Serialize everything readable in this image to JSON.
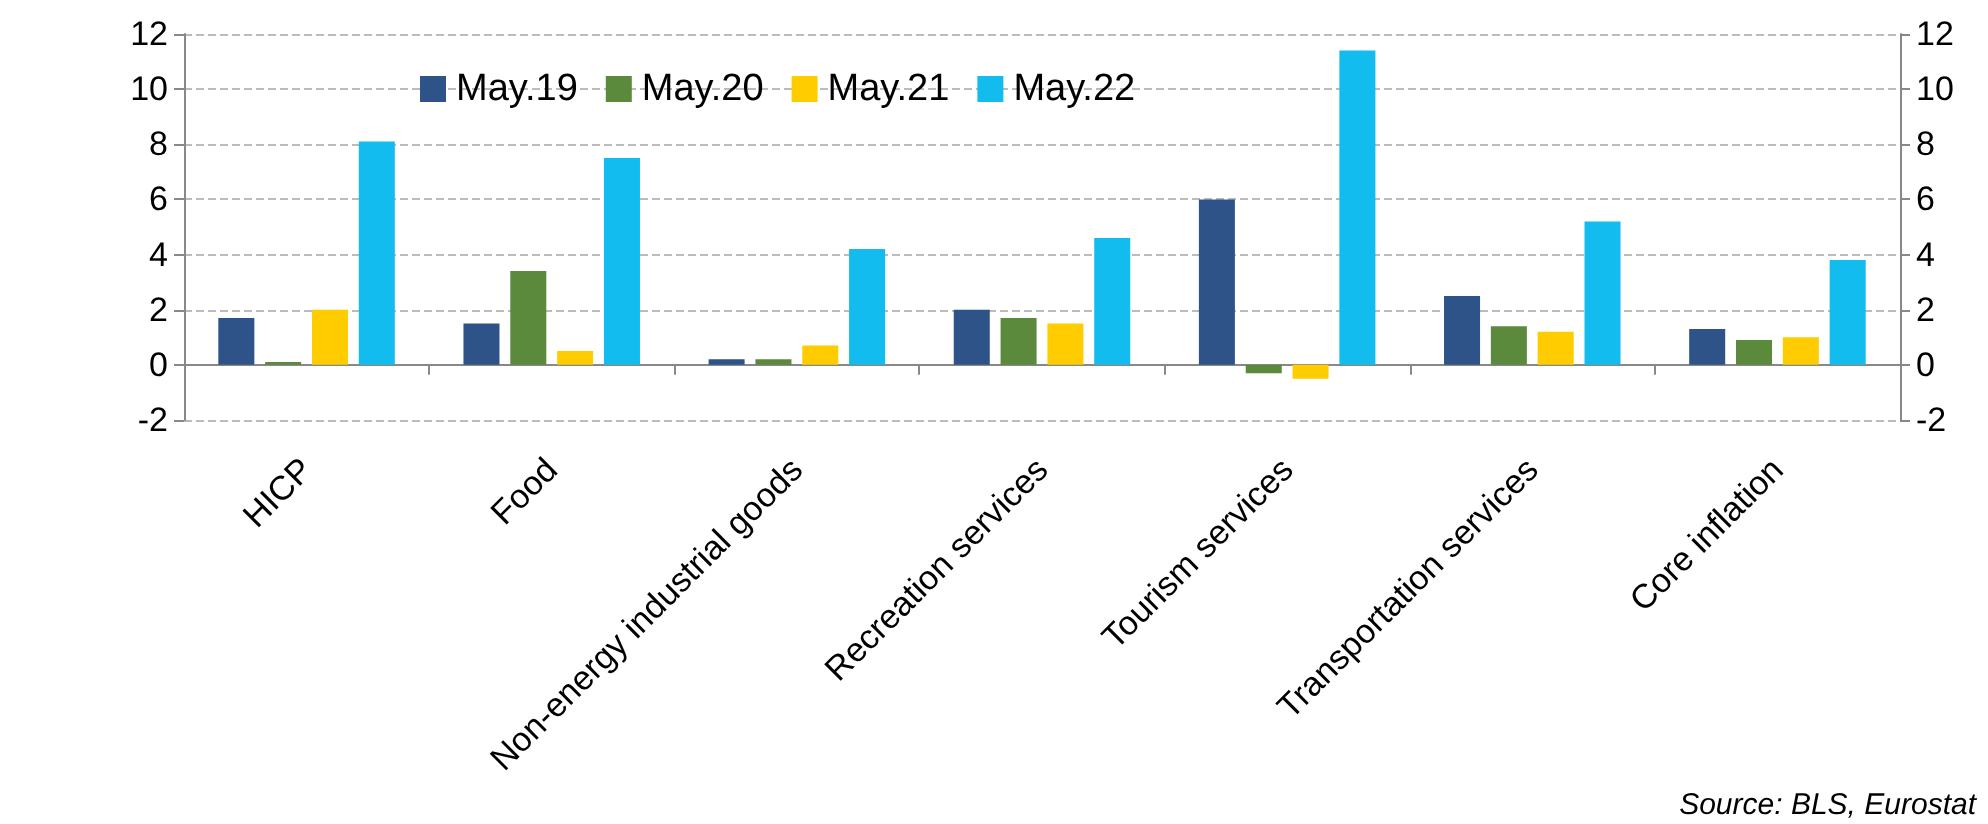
{
  "chart_data": {
    "type": "bar",
    "categories": [
      "HICP",
      "Food",
      "Non-energy industrial goods",
      "Recreation services",
      "Tourism services",
      "Transportation services",
      "Core inflation"
    ],
    "series": [
      {
        "name": "May.19",
        "color": "#2e5389",
        "values": [
          1.7,
          1.5,
          0.2,
          2.0,
          6.0,
          2.5,
          1.3
        ]
      },
      {
        "name": "May.20",
        "color": "#5b8a3c",
        "values": [
          0.1,
          3.4,
          0.2,
          1.7,
          -0.3,
          1.4,
          0.9
        ]
      },
      {
        "name": "May.21",
        "color": "#ffcc00",
        "values": [
          2.0,
          0.5,
          0.7,
          1.5,
          -0.5,
          1.2,
          1.0
        ]
      },
      {
        "name": "May.22",
        "color": "#12bcee",
        "values": [
          8.1,
          7.5,
          4.2,
          4.6,
          11.4,
          5.2,
          3.8
        ]
      }
    ],
    "ylim": [
      -2,
      12
    ],
    "yticks": [
      -2,
      0,
      2,
      4,
      6,
      8,
      10,
      12
    ],
    "y2lim": [
      -2,
      12
    ],
    "y2ticks": [
      -2,
      0,
      2,
      4,
      6,
      8,
      10,
      12
    ],
    "grid": "y",
    "legend": "top",
    "annotations": [
      "Source: BLS, Eurostat"
    ]
  }
}
